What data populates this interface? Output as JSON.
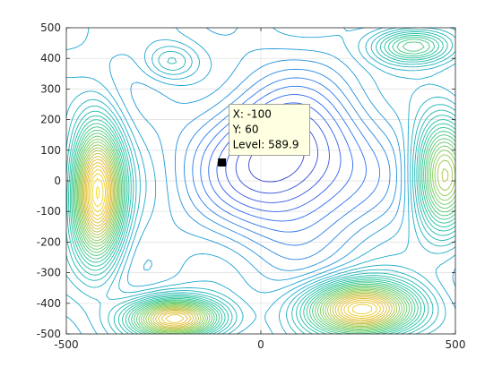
{
  "chart_data": {
    "type": "contour",
    "title": "",
    "xlabel": "",
    "ylabel": "",
    "xlim": [
      -500,
      500
    ],
    "ylim": [
      -500,
      500
    ],
    "x_ticks": [
      -500,
      0,
      500
    ],
    "y_ticks": [
      -500,
      -400,
      -300,
      -200,
      -100,
      0,
      100,
      200,
      300,
      400,
      500
    ],
    "x_tick_labels": [
      "-500",
      "0",
      "500"
    ],
    "y_tick_labels": [
      "-500",
      "-400",
      "-300",
      "-200",
      "-100",
      "0",
      "100",
      "200",
      "300",
      "400",
      "500"
    ],
    "grid": true,
    "colormap": "parula",
    "colormap_stops": [
      "#3e26a8",
      "#2e68f2",
      "#1fa7d4",
      "#20c39a",
      "#7ccd5a",
      "#e1b92e",
      "#f9e016"
    ],
    "contour_level_range": [
      300,
      1100
    ],
    "features": [
      {
        "kind": "high",
        "x": -420,
        "y": -40,
        "level": 1080,
        "sx": 45,
        "sy": 150
      },
      {
        "kind": "high",
        "x": -220,
        "y": -450,
        "level": 1020,
        "sx": 80,
        "sy": 45
      },
      {
        "kind": "high",
        "x": 260,
        "y": -420,
        "level": 1060,
        "sx": 95,
        "sy": 60
      },
      {
        "kind": "high",
        "x": 470,
        "y": 20,
        "level": 900,
        "sx": 50,
        "sy": 130
      },
      {
        "kind": "high",
        "x": 390,
        "y": 440,
        "level": 780,
        "sx": 70,
        "sy": 40
      },
      {
        "kind": "high",
        "x": -230,
        "y": 390,
        "level": 650,
        "sx": 45,
        "sy": 40
      },
      {
        "kind": "low",
        "x": 60,
        "y": 60,
        "level": 330,
        "sx": 150,
        "sy": 170
      }
    ],
    "datatip": {
      "x_text": "X: -100",
      "y_text": "Y: 60",
      "level_text": "Level: 589.9",
      "x": -100,
      "y": 60,
      "level": 589.9
    }
  }
}
